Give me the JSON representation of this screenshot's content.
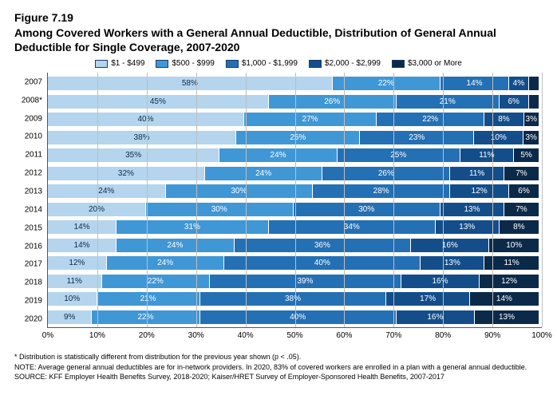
{
  "figure_number": "Figure 7.19",
  "title": "Among Covered Workers with a General Annual Deductible, Distribution of General Annual Deductible for Single Coverage, 2007-2020",
  "legend": [
    {
      "label": "$1 - $499",
      "color": "#b4d5ed"
    },
    {
      "label": "$500 - $999",
      "color": "#3f97d6"
    },
    {
      "label": "$1,000 - $1,999",
      "color": "#2470b5"
    },
    {
      "label": "$2,000 - $2,999",
      "color": "#134e8b"
    },
    {
      "label": "$3,000 or More",
      "color": "#0b2a4a"
    }
  ],
  "x_axis": {
    "ticks": [
      0,
      10,
      20,
      30,
      40,
      50,
      60,
      70,
      80,
      90,
      100
    ],
    "suffix": "%"
  },
  "years": [
    "2007",
    "2008*",
    "2009",
    "2010",
    "2011",
    "2012",
    "2013",
    "2014",
    "2015",
    "2016",
    "2017",
    "2018",
    "2019",
    "2020"
  ],
  "segments_pct": {
    "2007": [
      58,
      22,
      14,
      4,
      2
    ],
    "2008*": [
      45,
      26,
      21,
      6,
      2
    ],
    "2009": [
      40,
      27,
      22,
      8,
      3
    ],
    "2010": [
      38,
      25,
      23,
      10,
      3
    ],
    "2011": [
      35,
      24,
      25,
      11,
      5
    ],
    "2012": [
      32,
      24,
      26,
      11,
      7
    ],
    "2013": [
      24,
      30,
      28,
      12,
      6
    ],
    "2014": [
      20,
      30,
      30,
      13,
      7
    ],
    "2015": [
      14,
      31,
      34,
      13,
      8
    ],
    "2016": [
      14,
      24,
      36,
      16,
      10
    ],
    "2017": [
      12,
      24,
      40,
      13,
      11
    ],
    "2018": [
      11,
      22,
      39,
      16,
      12
    ],
    "2019": [
      10,
      21,
      38,
      17,
      14
    ],
    "2020": [
      9,
      22,
      40,
      16,
      13
    ]
  },
  "show_last_label_min_pct": 3,
  "footnote_star": "* Distribution is statistically different from distribution for the previous year shown (p < .05).",
  "footnote_note": "NOTE: Average general annual deductibles are for in-network providers. In 2020, 83% of covered workers are enrolled in a plan with a general annual deductible.",
  "footnote_source": "SOURCE: KFF Employer Health Benefits Survey, 2018-2020; Kaiser/HRET Survey of Employer-Sponsored Health Benefits, 2007-2017",
  "colors": {
    "grid": "#bfbfbf",
    "axis": "#555555",
    "bg": "#ffffff"
  }
}
